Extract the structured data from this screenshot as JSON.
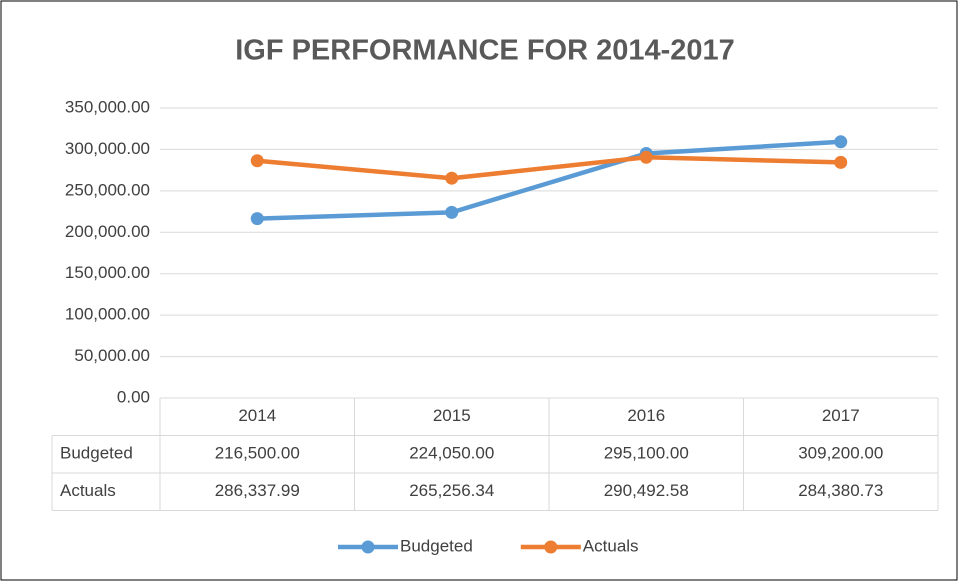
{
  "chart_data": {
    "type": "line",
    "title": "IGF PERFORMANCE FOR 2014-2017",
    "categories": [
      "2014",
      "2015",
      "2016",
      "2017"
    ],
    "series": [
      {
        "name": "Budgeted",
        "color": "#5b9bd5",
        "values": [
          216500,
          224050,
          295100,
          309200
        ],
        "value_labels": [
          "216,500.00",
          "224,050.00",
          "295,100.00",
          "309,200.00"
        ]
      },
      {
        "name": "Actuals",
        "color": "#ed7d31",
        "values": [
          286337.99,
          265256.34,
          290492.58,
          284380.73
        ],
        "value_labels": [
          "286,337.99",
          "265,256.34",
          "290,492.58",
          "284,380.73"
        ]
      }
    ],
    "ylim": [
      0,
      350000
    ],
    "yticks": [
      {
        "value": 0,
        "label": "0.00"
      },
      {
        "value": 50000,
        "label": "50,000.00"
      },
      {
        "value": 100000,
        "label": "100,000.00"
      },
      {
        "value": 150000,
        "label": "150,000.00"
      },
      {
        "value": 200000,
        "label": "200,000.00"
      },
      {
        "value": 250000,
        "label": "250,000.00"
      },
      {
        "value": 300000,
        "label": "300,000.00"
      },
      {
        "value": 350000,
        "label": "350,000.00"
      }
    ],
    "grid": true,
    "legend": "bottom",
    "data_table": true
  }
}
